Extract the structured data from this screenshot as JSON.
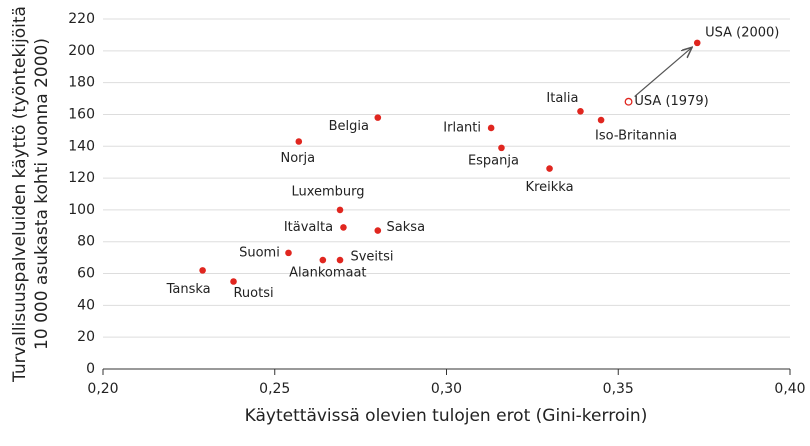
{
  "chart_data": {
    "type": "scatter",
    "xlabel": "Käytettävissä olevien tulojen erot (Gini-kerroin)",
    "ylabel": [
      "Turvallisuuspalveluiden käyttö (työntekijöitä",
      "10 000 asukasta kohti vuonna 2000)"
    ],
    "labels": [
      "Tanska",
      "Ruotsi",
      "Suomi",
      "Alankomaat",
      "Sveitsi",
      "Itävalta",
      "Saksa",
      "Luxemburg",
      "Norja",
      "Belgia",
      "Irlanti",
      "Espanja",
      "Kreikka",
      "Italia",
      "Iso-Britannia",
      "USA (1979)",
      "USA (2000)"
    ],
    "x": [
      0.229,
      0.238,
      0.254,
      0.264,
      0.269,
      0.27,
      0.28,
      0.269,
      0.257,
      0.28,
      0.313,
      0.316,
      0.33,
      0.339,
      0.345,
      0.353,
      0.373
    ],
    "values": [
      62,
      55,
      73,
      68.5,
      68.5,
      89,
      87,
      100,
      143,
      158,
      151.5,
      139,
      126,
      162,
      156.5,
      168,
      205
    ],
    "hollow": [
      false,
      false,
      false,
      false,
      false,
      false,
      false,
      false,
      false,
      false,
      false,
      false,
      false,
      false,
      false,
      true,
      false
    ],
    "color": "#e0261f",
    "xlim": [
      0.2,
      0.4
    ],
    "xticks": [
      {
        "value": 0.2,
        "label": "0,20"
      },
      {
        "value": 0.25,
        "label": "0,25"
      },
      {
        "value": 0.3,
        "label": "0,30"
      },
      {
        "value": 0.35,
        "label": "0,35"
      },
      {
        "value": 0.4,
        "label": "0,40"
      }
    ],
    "ylim": [
      0,
      220
    ],
    "yticks": [
      0,
      20,
      40,
      60,
      80,
      100,
      120,
      140,
      160,
      180,
      200,
      220
    ],
    "grid": true
  }
}
